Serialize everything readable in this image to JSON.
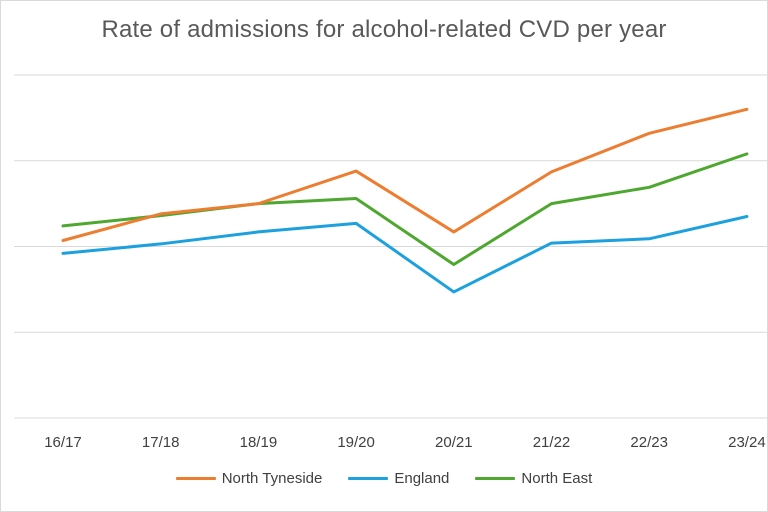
{
  "chart_data": {
    "type": "line",
    "title": "Rate of admissions for alcohol-related CVD per year",
    "xlabel": "",
    "ylabel": "",
    "categories": [
      "16/17",
      "17/18",
      "18/19",
      "19/20",
      "20/21",
      "21/22",
      "22/23",
      "23/24"
    ],
    "ylim": [
      0,
      4
    ],
    "grid": true,
    "y_tick_labels_shown": false,
    "series": [
      {
        "name": "North Tyneside",
        "color": "#ED7D31",
        "values": [
          2.07,
          2.38,
          2.5,
          2.88,
          2.17,
          2.87,
          3.32,
          3.6
        ]
      },
      {
        "name": "England",
        "color": "#1CA1DE",
        "values": [
          1.92,
          2.03,
          2.17,
          2.27,
          1.47,
          2.04,
          2.09,
          2.35
        ]
      },
      {
        "name": "North East",
        "color": "#4EA72E",
        "values": [
          2.24,
          2.36,
          2.5,
          2.56,
          1.79,
          2.5,
          2.69,
          3.08
        ]
      }
    ],
    "legend_position": "bottom"
  }
}
